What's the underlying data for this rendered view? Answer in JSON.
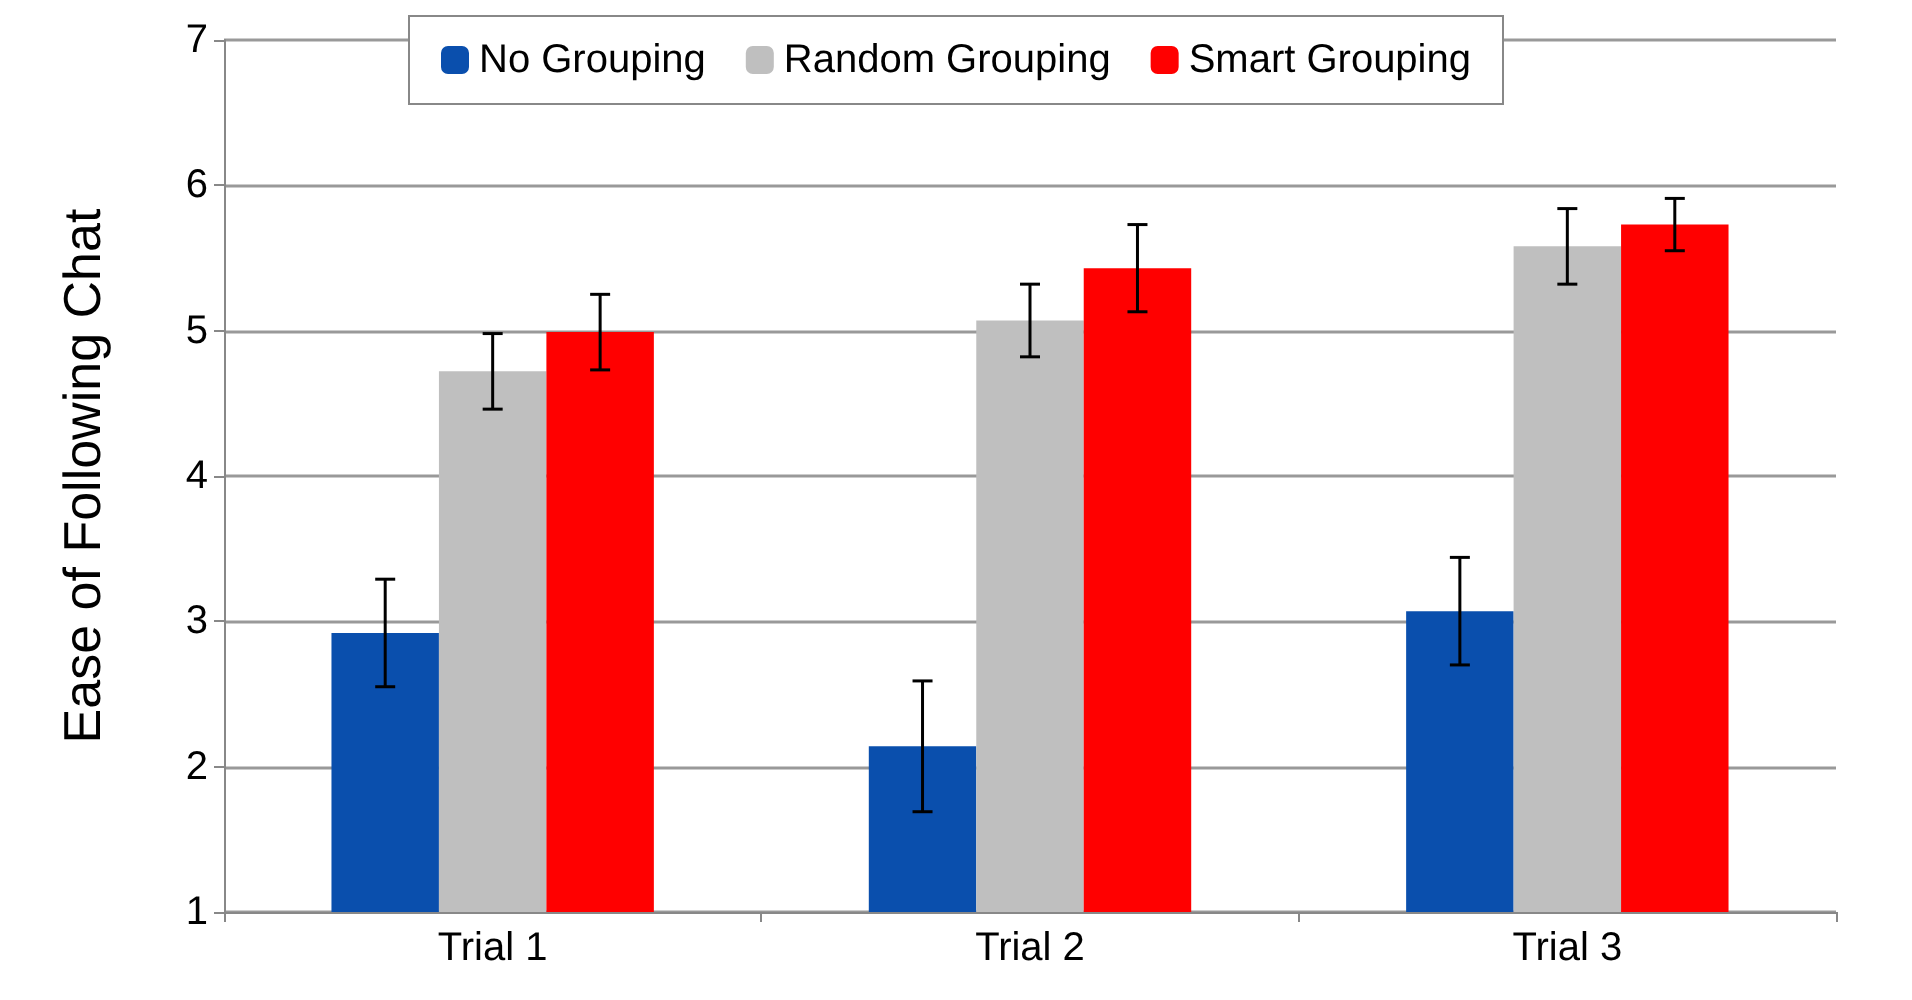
{
  "chart_data": {
    "type": "bar",
    "ylabel": "Ease of Following Chat",
    "categories": [
      "Trial 1",
      "Trial 2",
      "Trial 3"
    ],
    "series": [
      {
        "name": "No Grouping",
        "color": "#0a4fad",
        "values": [
          2.92,
          2.14,
          3.07
        ],
        "errors": [
          0.37,
          0.45,
          0.37
        ]
      },
      {
        "name": "Random Grouping",
        "color": "#bfbfbf",
        "values": [
          4.72,
          5.07,
          5.58
        ],
        "errors": [
          0.26,
          0.25,
          0.26
        ]
      },
      {
        "name": "Smart Grouping",
        "color": "#ff0000",
        "values": [
          4.99,
          5.43,
          5.73
        ],
        "errors": [
          0.26,
          0.3,
          0.18
        ]
      }
    ],
    "ylim": [
      1,
      7
    ],
    "yticks": [
      1,
      2,
      3,
      4,
      5,
      6,
      7
    ],
    "grid": "y",
    "legend": "top"
  }
}
